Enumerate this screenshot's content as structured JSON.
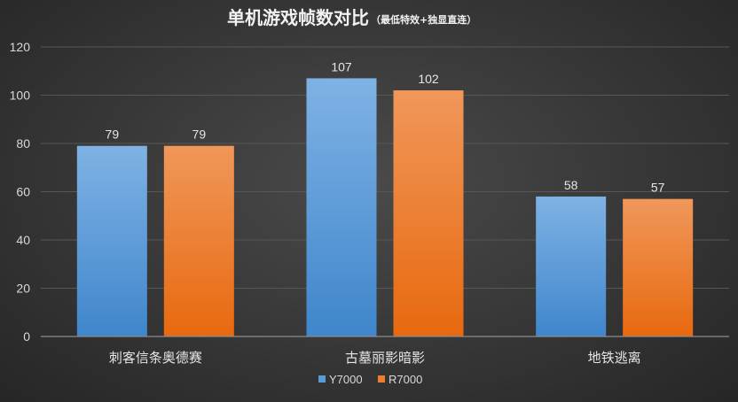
{
  "chart_data": {
    "type": "bar",
    "title": "单机游戏帧数对比",
    "subtitle": "（最低特效+独显直连）",
    "categories": [
      "刺客信条奥德赛",
      "古墓丽影暗影",
      "地铁逃离"
    ],
    "series": [
      {
        "name": "Y7000",
        "values": [
          79,
          107,
          58
        ],
        "color": "#5b9bd5"
      },
      {
        "name": "R7000",
        "values": [
          79,
          102,
          57
        ],
        "color": "#ed7d31"
      }
    ],
    "ylim": [
      0,
      120
    ],
    "yticks": [
      "0",
      "20",
      "40",
      "60",
      "80",
      "100",
      "120"
    ],
    "grid": true,
    "legend_position": "bottom-center",
    "xlabel": "",
    "ylabel": ""
  }
}
